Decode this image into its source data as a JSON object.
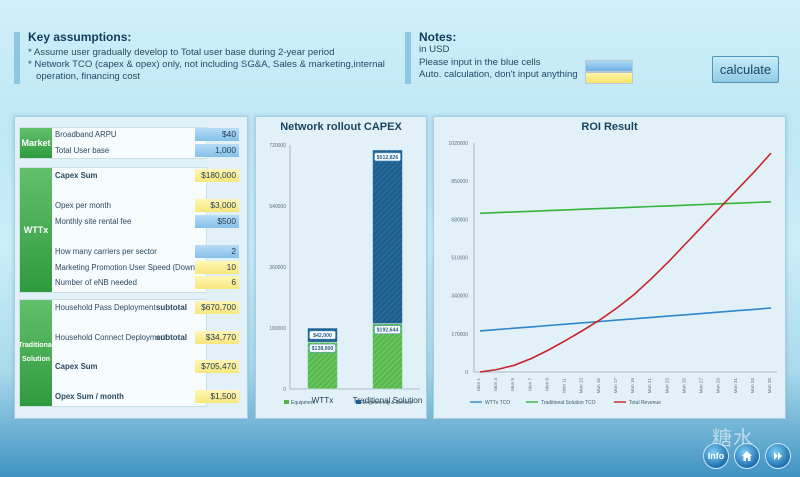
{
  "assumptions": {
    "title": "Key assumptions:",
    "items": [
      "* Assume user gradually develop to Total user base during 2-year period",
      "* Network TCO (capex & opex) only, not including SG&A, Sales & marketing,internal",
      "   operation, financing cost"
    ]
  },
  "notes": {
    "title": "Notes:",
    "line1": "in USD",
    "line2": "Please input in the blue cells",
    "line3": "Auto. calculation, don't input anything"
  },
  "calculate_label": "calculate",
  "form": {
    "market": {
      "tag": "Market",
      "arpu_label": "Broadband ARPU",
      "arpu_value": "$40",
      "users_label": "Total User base",
      "users_value": "1,000"
    },
    "wttx": {
      "tag": "WTTx",
      "capex_label": "Capex Sum",
      "capex_value": "$180,000",
      "opex_label": "Opex per month",
      "opex_value": "$3,000",
      "rental_label": "Monthly site rental fee",
      "rental_value": "$500",
      "carriers_label": "How many carriers per sector",
      "carriers_value": "2",
      "speed_label": "Marketing Promotion User Speed (Downlink)",
      "speed_value": "10",
      "enb_label": "Number of eNB needed",
      "enb_value": "6"
    },
    "traditional": {
      "tag": "Traditional\nSolution",
      "pass_label": "Household Pass Deployment",
      "pass_sub": "subtotal",
      "pass_value": "$670,700",
      "connect_label": "Household Connect Deployment",
      "connect_sub": "subtotal",
      "connect_value": "$34,770",
      "capex_label": "Capex Sum",
      "capex_value": "$705,470",
      "opex_label": "Opex Sum / month",
      "opex_value": "$1,500"
    }
  },
  "capex_chart": {
    "title": "Network rollout CAPEX",
    "chart_data": {
      "type": "bar",
      "stacked": true,
      "categories": [
        "WTTx",
        "Traditional Solution"
      ],
      "series": [
        {
          "name": "Equipment",
          "values": [
            138000,
            192644
          ],
          "labels": [
            "$138,000",
            "$192,644"
          ],
          "color": "#4fb24a"
        },
        {
          "name": "Engineering & Service",
          "values": [
            42000,
            512826
          ],
          "labels": [
            "$42,000",
            "$512,826"
          ],
          "color": "#1f5f8e"
        }
      ],
      "ylim": [
        0,
        720000
      ],
      "yticks": [
        "0",
        "180000",
        "360000",
        "540000",
        "720000"
      ],
      "legend": "bottom"
    }
  },
  "roi_chart": {
    "title": "ROI Result",
    "chart_data": {
      "type": "line",
      "x": [
        "Mon 1",
        "Mon 3",
        "Mon 5",
        "Mon 7",
        "Mon 9",
        "Mon 11",
        "Mon 13",
        "Mon 15",
        "Mon 17",
        "Mon 19",
        "Mon 21",
        "Mon 23",
        "Mon 25",
        "Mon 27",
        "Mon 29",
        "Mon 31",
        "Mon 33",
        "Mon 35"
      ],
      "ylim": [
        0,
        1020000
      ],
      "yticks": [
        "0",
        "170000",
        "340000",
        "510000",
        "680000",
        "850000",
        "1020000"
      ],
      "series": [
        {
          "name": "WTTx TCO",
          "color": "#2f86c8",
          "values": [
            183000,
            189000,
            195000,
            201000,
            207000,
            213000,
            219000,
            225000,
            231000,
            237000,
            243000,
            249000,
            255000,
            261000,
            267000,
            273000,
            279000,
            285000
          ]
        },
        {
          "name": "Traditional Solution TCO",
          "color": "#35b43c",
          "values": [
            707000,
            710000,
            713000,
            716000,
            719000,
            722000,
            725000,
            728000,
            731000,
            734000,
            737000,
            740000,
            743000,
            746000,
            749000,
            752000,
            755000,
            758000
          ]
        },
        {
          "name": "Total Revenue",
          "color": "#c8242b",
          "values": [
            0,
            11000,
            30000,
            60000,
            98000,
            140000,
            185000,
            232000,
            285000,
            345000,
            415000,
            490000,
            570000,
            650000,
            730000,
            810000,
            890000,
            975000
          ]
        }
      ],
      "legend": "bottom"
    }
  },
  "nav": {
    "info": "Info",
    "home_icon": "home-icon",
    "next_icon": "double-chevron-right-icon"
  },
  "watermark": "糖水"
}
